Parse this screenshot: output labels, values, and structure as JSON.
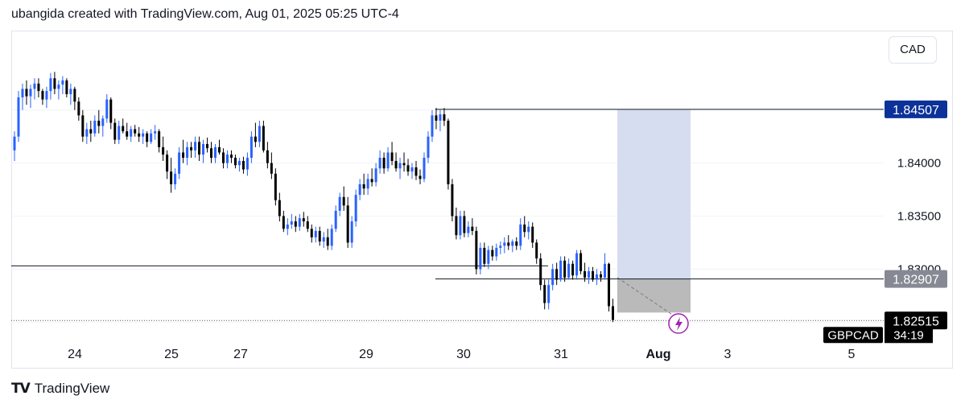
{
  "header": {
    "text": "ubangida created with TradingView.com, Aug 01, 2025 05:25 UTC-4"
  },
  "toolbar": {
    "currency_label": "CAD"
  },
  "footer": {
    "brand": "TradingView",
    "logo_icon": "tradingview-logo-icon"
  },
  "colors": {
    "up": "#2962ff",
    "down": "#000000",
    "target_zone": "#d5dbef",
    "stop_zone": "#b2b2b2",
    "line": "#131722"
  },
  "chart_data": {
    "type": "candlestick",
    "symbol": "GBPCAD",
    "countdown": "34:19",
    "current_price": 1.82515,
    "ylim": [
      1.8235,
      1.8525
    ],
    "y_ticks": [
      1.835,
      1.84
    ],
    "y_tick_labels": [
      "1.83500",
      "1.84000"
    ],
    "y_partial_label": "1.83000",
    "x_tick_labels": [
      "24",
      "25",
      "27",
      "29",
      "30",
      "31",
      "Aug",
      "3",
      "5"
    ],
    "horizontal_levels": [
      {
        "value": 1.84507,
        "label": "1.84507",
        "tag_color": "#0c3299"
      },
      {
        "value": 1.82907,
        "label": "1.82907",
        "tag_color": "#868993"
      },
      {
        "value": 1.8303,
        "label": ""
      }
    ],
    "price_tag": {
      "value": 1.82515,
      "label": "1.82515",
      "tag_color": "#000000"
    },
    "position": {
      "entry": 1.82907,
      "target": 1.84507,
      "stop": 1.8259
    },
    "candles": [
      [
        1.8412,
        1.843,
        1.8402,
        1.8425
      ],
      [
        1.8425,
        1.8468,
        1.842,
        1.8462
      ],
      [
        1.8462,
        1.8475,
        1.845,
        1.847
      ],
      [
        1.847,
        1.8478,
        1.8455,
        1.8463
      ],
      [
        1.8463,
        1.8474,
        1.8452,
        1.847
      ],
      [
        1.847,
        1.848,
        1.846,
        1.8475
      ],
      [
        1.8475,
        1.848,
        1.8462,
        1.8468
      ],
      [
        1.8468,
        1.847,
        1.8455,
        1.846
      ],
      [
        1.846,
        1.8472,
        1.8452,
        1.8468
      ],
      [
        1.8468,
        1.8485,
        1.846,
        1.848
      ],
      [
        1.848,
        1.8486,
        1.8465,
        1.847
      ],
      [
        1.847,
        1.8478,
        1.846,
        1.8474
      ],
      [
        1.8474,
        1.8482,
        1.8465,
        1.8478
      ],
      [
        1.8478,
        1.848,
        1.8462,
        1.8465
      ],
      [
        1.8465,
        1.8475,
        1.8455,
        1.847
      ],
      [
        1.847,
        1.8472,
        1.845,
        1.8458
      ],
      [
        1.8458,
        1.8462,
        1.844,
        1.8445
      ],
      [
        1.8445,
        1.845,
        1.842,
        1.8425
      ],
      [
        1.8425,
        1.8438,
        1.8418,
        1.8432
      ],
      [
        1.8432,
        1.844,
        1.842,
        1.8428
      ],
      [
        1.8428,
        1.8445,
        1.8425,
        1.844
      ],
      [
        1.844,
        1.845,
        1.8428,
        1.8435
      ],
      [
        1.8435,
        1.8445,
        1.8425,
        1.8442
      ],
      [
        1.8442,
        1.8465,
        1.8438,
        1.846
      ],
      [
        1.846,
        1.8462,
        1.8432,
        1.8438
      ],
      [
        1.8438,
        1.8442,
        1.8418,
        1.8422
      ],
      [
        1.8422,
        1.844,
        1.8418,
        1.8435
      ],
      [
        1.8435,
        1.8442,
        1.8428,
        1.843
      ],
      [
        1.843,
        1.8438,
        1.8422,
        1.8425
      ],
      [
        1.8425,
        1.8435,
        1.842,
        1.8432
      ],
      [
        1.8432,
        1.8436,
        1.8425,
        1.8428
      ],
      [
        1.8428,
        1.8434,
        1.842,
        1.8425
      ],
      [
        1.8425,
        1.8432,
        1.8418,
        1.8428
      ],
      [
        1.8428,
        1.843,
        1.8415,
        1.842
      ],
      [
        1.842,
        1.8432,
        1.8418,
        1.8428
      ],
      [
        1.8428,
        1.8436,
        1.8422,
        1.843
      ],
      [
        1.843,
        1.8432,
        1.841,
        1.8415
      ],
      [
        1.8415,
        1.8425,
        1.8402,
        1.8408
      ],
      [
        1.8408,
        1.8412,
        1.8385,
        1.8392
      ],
      [
        1.8392,
        1.8405,
        1.8372,
        1.838
      ],
      [
        1.838,
        1.8395,
        1.8375,
        1.839
      ],
      [
        1.839,
        1.8415,
        1.8385,
        1.841
      ],
      [
        1.841,
        1.8422,
        1.84,
        1.8405
      ],
      [
        1.8405,
        1.842,
        1.8398,
        1.8415
      ],
      [
        1.8415,
        1.842,
        1.8405,
        1.8412
      ],
      [
        1.8412,
        1.8425,
        1.8405,
        1.842
      ],
      [
        1.842,
        1.8425,
        1.8402,
        1.8408
      ],
      [
        1.8408,
        1.8422,
        1.84,
        1.8418
      ],
      [
        1.8418,
        1.8424,
        1.841,
        1.8414
      ],
      [
        1.8414,
        1.842,
        1.84,
        1.8405
      ],
      [
        1.8405,
        1.8418,
        1.84,
        1.8415
      ],
      [
        1.8415,
        1.8422,
        1.8408,
        1.841
      ],
      [
        1.841,
        1.8414,
        1.8395,
        1.84
      ],
      [
        1.84,
        1.8412,
        1.8395,
        1.8408
      ],
      [
        1.8408,
        1.8412,
        1.84,
        1.8405
      ],
      [
        1.8405,
        1.8408,
        1.8395,
        1.8398
      ],
      [
        1.8398,
        1.8405,
        1.8392,
        1.8402
      ],
      [
        1.8402,
        1.8406,
        1.839,
        1.8394
      ],
      [
        1.8394,
        1.841,
        1.8388,
        1.8405
      ],
      [
        1.8405,
        1.843,
        1.84,
        1.8425
      ],
      [
        1.8425,
        1.8438,
        1.8415,
        1.842
      ],
      [
        1.842,
        1.844,
        1.8415,
        1.8435
      ],
      [
        1.8435,
        1.844,
        1.841,
        1.8412
      ],
      [
        1.8412,
        1.842,
        1.8395,
        1.84
      ],
      [
        1.84,
        1.841,
        1.8385,
        1.839
      ],
      [
        1.839,
        1.8395,
        1.836,
        1.8365
      ],
      [
        1.8365,
        1.8372,
        1.8345,
        1.835
      ],
      [
        1.835,
        1.8355,
        1.8335,
        1.8338
      ],
      [
        1.8338,
        1.8348,
        1.8332,
        1.8342
      ],
      [
        1.8342,
        1.8352,
        1.8338,
        1.8345
      ],
      [
        1.8345,
        1.835,
        1.8335,
        1.834
      ],
      [
        1.834,
        1.8352,
        1.8336,
        1.8348
      ],
      [
        1.8348,
        1.8354,
        1.834,
        1.8345
      ],
      [
        1.8345,
        1.835,
        1.8335,
        1.8338
      ],
      [
        1.8338,
        1.8342,
        1.8325,
        1.833
      ],
      [
        1.833,
        1.834,
        1.8325,
        1.8336
      ],
      [
        1.8336,
        1.834,
        1.8322,
        1.8326
      ],
      [
        1.8326,
        1.8335,
        1.832,
        1.833
      ],
      [
        1.833,
        1.8338,
        1.8318,
        1.8322
      ],
      [
        1.8322,
        1.8342,
        1.8318,
        1.8338
      ],
      [
        1.8338,
        1.836,
        1.8335,
        1.8355
      ],
      [
        1.8355,
        1.8372,
        1.835,
        1.8368
      ],
      [
        1.8368,
        1.8378,
        1.8355,
        1.836
      ],
      [
        1.836,
        1.8368,
        1.832,
        1.8325
      ],
      [
        1.8325,
        1.835,
        1.832,
        1.8345
      ],
      [
        1.8345,
        1.8375,
        1.834,
        1.837
      ],
      [
        1.837,
        1.8385,
        1.8365,
        1.838
      ],
      [
        1.838,
        1.839,
        1.837,
        1.8376
      ],
      [
        1.8376,
        1.839,
        1.837,
        1.8385
      ],
      [
        1.8385,
        1.8395,
        1.8378,
        1.8382
      ],
      [
        1.8382,
        1.84,
        1.8378,
        1.8395
      ],
      [
        1.8395,
        1.8412,
        1.839,
        1.8405
      ],
      [
        1.8405,
        1.841,
        1.839,
        1.8395
      ],
      [
        1.8395,
        1.8415,
        1.8392,
        1.841
      ],
      [
        1.841,
        1.842,
        1.8398,
        1.8402
      ],
      [
        1.8402,
        1.841,
        1.8392,
        1.8395
      ],
      [
        1.8395,
        1.8405,
        1.8385,
        1.84
      ],
      [
        1.84,
        1.841,
        1.8392,
        1.8398
      ],
      [
        1.8398,
        1.8404,
        1.8388,
        1.8392
      ],
      [
        1.8392,
        1.84,
        1.8385,
        1.8396
      ],
      [
        1.8396,
        1.8402,
        1.8384,
        1.8388
      ],
      [
        1.8388,
        1.8394,
        1.838,
        1.8385
      ],
      [
        1.8385,
        1.841,
        1.8382,
        1.8405
      ],
      [
        1.8405,
        1.843,
        1.84,
        1.8425
      ],
      [
        1.8425,
        1.845,
        1.842,
        1.8445
      ],
      [
        1.8445,
        1.8452,
        1.8432,
        1.844
      ],
      [
        1.844,
        1.845,
        1.843,
        1.8446
      ],
      [
        1.8446,
        1.8452,
        1.8435,
        1.844
      ],
      [
        1.844,
        1.8442,
        1.8375,
        1.838
      ],
      [
        1.838,
        1.8385,
        1.8345,
        1.835
      ],
      [
        1.835,
        1.8358,
        1.8328,
        1.8332
      ],
      [
        1.8332,
        1.8355,
        1.8328,
        1.835
      ],
      [
        1.835,
        1.8355,
        1.833,
        1.8334
      ],
      [
        1.8334,
        1.8345,
        1.833,
        1.834
      ],
      [
        1.834,
        1.8348,
        1.8332,
        1.8336
      ],
      [
        1.8336,
        1.834,
        1.8295,
        1.83
      ],
      [
        1.83,
        1.8325,
        1.8295,
        1.832
      ],
      [
        1.832,
        1.8325,
        1.8302,
        1.8305
      ],
      [
        1.8305,
        1.8322,
        1.83,
        1.8318
      ],
      [
        1.8318,
        1.8322,
        1.8308,
        1.8312
      ],
      [
        1.8312,
        1.8324,
        1.8308,
        1.832
      ],
      [
        1.832,
        1.8326,
        1.8314,
        1.8322
      ],
      [
        1.8322,
        1.833,
        1.8315,
        1.8325
      ],
      [
        1.8325,
        1.8332,
        1.8318,
        1.8322
      ],
      [
        1.8322,
        1.8328,
        1.8316,
        1.8326
      ],
      [
        1.8326,
        1.833,
        1.8318,
        1.8322
      ],
      [
        1.8322,
        1.8348,
        1.8318,
        1.8342
      ],
      [
        1.8342,
        1.835,
        1.833,
        1.8335
      ],
      [
        1.8335,
        1.8345,
        1.8328,
        1.834
      ],
      [
        1.834,
        1.8344,
        1.832,
        1.8325
      ],
      [
        1.8325,
        1.8328,
        1.8305,
        1.831
      ],
      [
        1.831,
        1.8315,
        1.828,
        1.8285
      ],
      [
        1.8285,
        1.829,
        1.8262,
        1.8268
      ],
      [
        1.8268,
        1.829,
        1.8262,
        1.8285
      ],
      [
        1.8285,
        1.8305,
        1.828,
        1.83
      ],
      [
        1.83,
        1.8306,
        1.8285,
        1.829
      ],
      [
        1.829,
        1.8312,
        1.8288,
        1.8308
      ],
      [
        1.8308,
        1.8312,
        1.8288,
        1.8292
      ],
      [
        1.8292,
        1.831,
        1.829,
        1.8305
      ],
      [
        1.8305,
        1.8308,
        1.829,
        1.8294
      ],
      [
        1.8294,
        1.8318,
        1.829,
        1.8315
      ],
      [
        1.8315,
        1.8318,
        1.8295,
        1.8298
      ],
      [
        1.8298,
        1.8306,
        1.8288,
        1.8292
      ],
      [
        1.8292,
        1.8302,
        1.8286,
        1.8298
      ],
      [
        1.8298,
        1.8302,
        1.8288,
        1.829
      ],
      [
        1.829,
        1.83,
        1.8285,
        1.8295
      ],
      [
        1.8295,
        1.8298,
        1.8288,
        1.8292
      ],
      [
        1.8292,
        1.8315,
        1.829,
        1.8305
      ],
      [
        1.8305,
        1.8306,
        1.826,
        1.8265
      ],
      [
        1.8265,
        1.8272,
        1.825,
        1.8252
      ]
    ]
  }
}
